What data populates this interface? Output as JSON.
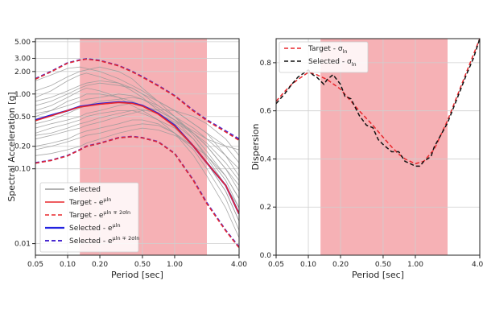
{
  "chart_data": [
    {
      "type": "line",
      "xlabel": "Period [sec]",
      "ylabel": "Spectral Acceleration [g]",
      "xscale": "log",
      "yscale": "log",
      "xlim": [
        0.05,
        4.0
      ],
      "ylim": [
        0.007,
        5.5
      ],
      "xticks": [
        0.05,
        0.1,
        0.2,
        0.5,
        1.0,
        4.0
      ],
      "xtick_labels": [
        "0.05",
        "0.10",
        "0.20",
        "0.50",
        "1.00",
        "4.00"
      ],
      "yticks": [
        0.01,
        0.1,
        0.2,
        0.5,
        1.0,
        2.0,
        3.0,
        5.0
      ],
      "ytick_labels": [
        "0.01",
        "0.10",
        "0.20",
        "0.50",
        "1.00",
        "2.00",
        "3.00",
        "5.00"
      ],
      "shaded_period_range": [
        0.13,
        2.0
      ],
      "shade_color": "#f4a3a8",
      "grid": true,
      "legend_position": "bottom-left",
      "legend": [
        {
          "label_main": "Selected",
          "label_sup": "",
          "style": "gray"
        },
        {
          "label_main": "Target - e",
          "label_sup": "μln",
          "style": "red-solid"
        },
        {
          "label_main": "Target - e",
          "label_sup": "μln ∓ 2σln",
          "style": "red-dashed"
        },
        {
          "label_main": "Selected - e",
          "label_sup": "μln",
          "style": "blue-solid"
        },
        {
          "label_main": "Selected - e",
          "label_sup": "μln ∓ 2σln",
          "style": "blue-dashed"
        }
      ],
      "x": [
        0.05,
        0.07,
        0.1,
        0.13,
        0.15,
        0.2,
        0.3,
        0.4,
        0.5,
        0.7,
        1.0,
        1.5,
        2.0,
        3.0,
        4.0
      ],
      "series": [
        {
          "style": "blue-solid",
          "values": [
            0.45,
            0.52,
            0.6,
            0.68,
            0.7,
            0.74,
            0.78,
            0.76,
            0.7,
            0.55,
            0.38,
            0.2,
            0.12,
            0.06,
            0.025
          ]
        },
        {
          "style": "red-solid",
          "values": [
            0.44,
            0.51,
            0.6,
            0.67,
            0.69,
            0.73,
            0.77,
            0.75,
            0.69,
            0.54,
            0.37,
            0.2,
            0.12,
            0.06,
            0.025
          ]
        },
        {
          "style": "blue-dashed",
          "values": [
            1.6,
            2.0,
            2.6,
            2.85,
            2.95,
            2.8,
            2.4,
            2.0,
            1.7,
            1.3,
            0.95,
            0.6,
            0.45,
            0.32,
            0.25
          ]
        },
        {
          "style": "red-dashed",
          "values": [
            1.58,
            1.98,
            2.58,
            2.83,
            2.93,
            2.78,
            2.38,
            1.98,
            1.68,
            1.28,
            0.94,
            0.59,
            0.44,
            0.31,
            0.24
          ]
        },
        {
          "style": "blue-dashed",
          "values": [
            0.12,
            0.13,
            0.15,
            0.18,
            0.2,
            0.22,
            0.26,
            0.27,
            0.26,
            0.23,
            0.16,
            0.07,
            0.035,
            0.015,
            0.009
          ]
        },
        {
          "style": "red-dashed",
          "values": [
            0.119,
            0.129,
            0.149,
            0.179,
            0.199,
            0.219,
            0.259,
            0.269,
            0.259,
            0.229,
            0.159,
            0.069,
            0.034,
            0.0148,
            0.0088
          ]
        },
        {
          "style": "gray",
          "values": [
            0.9,
            1.1,
            1.5,
            1.8,
            1.9,
            1.7,
            1.4,
            1.1,
            0.9,
            0.6,
            0.45,
            0.3,
            0.2,
            0.1,
            0.05
          ]
        },
        {
          "style": "gray",
          "values": [
            0.5,
            0.6,
            0.8,
            0.9,
            1.0,
            1.0,
            0.9,
            0.8,
            0.7,
            0.55,
            0.4,
            0.25,
            0.15,
            0.07,
            0.03
          ]
        },
        {
          "style": "gray",
          "values": [
            0.3,
            0.35,
            0.4,
            0.45,
            0.5,
            0.55,
            0.6,
            0.6,
            0.55,
            0.45,
            0.35,
            0.2,
            0.12,
            0.05,
            0.02
          ]
        },
        {
          "style": "gray",
          "values": [
            0.2,
            0.22,
            0.25,
            0.3,
            0.32,
            0.35,
            0.4,
            0.45,
            0.45,
            0.4,
            0.3,
            0.18,
            0.1,
            0.04,
            0.015
          ]
        },
        {
          "style": "gray",
          "values": [
            1.5,
            1.8,
            2.2,
            2.3,
            2.2,
            2.0,
            1.6,
            1.3,
            1.1,
            0.8,
            0.6,
            0.4,
            0.3,
            0.15,
            0.08
          ]
        },
        {
          "style": "gray",
          "values": [
            0.7,
            0.8,
            1.0,
            1.2,
            1.3,
            1.4,
            1.3,
            1.2,
            1.0,
            0.8,
            0.6,
            0.4,
            0.3,
            0.2,
            0.12
          ]
        },
        {
          "style": "gray",
          "values": [
            0.25,
            0.28,
            0.32,
            0.35,
            0.38,
            0.42,
            0.5,
            0.55,
            0.6,
            0.62,
            0.6,
            0.5,
            0.4,
            0.25,
            0.15
          ]
        },
        {
          "style": "gray",
          "values": [
            0.15,
            0.16,
            0.18,
            0.2,
            0.22,
            0.25,
            0.3,
            0.33,
            0.35,
            0.33,
            0.28,
            0.2,
            0.15,
            0.08,
            0.04
          ]
        },
        {
          "style": "gray",
          "values": [
            0.6,
            0.7,
            0.9,
            1.1,
            1.2,
            1.1,
            0.9,
            0.7,
            0.6,
            0.45,
            0.3,
            0.15,
            0.08,
            0.03,
            0.012
          ]
        },
        {
          "style": "gray",
          "values": [
            0.4,
            0.45,
            0.55,
            0.65,
            0.7,
            0.8,
            0.85,
            0.9,
            0.85,
            0.7,
            0.5,
            0.3,
            0.2,
            0.1,
            0.06
          ]
        },
        {
          "style": "gray",
          "values": [
            1.1,
            1.3,
            1.7,
            2.0,
            2.1,
            2.3,
            2.0,
            1.6,
            1.2,
            0.8,
            0.5,
            0.28,
            0.17,
            0.08,
            0.04
          ]
        },
        {
          "style": "gray",
          "values": [
            0.35,
            0.4,
            0.45,
            0.5,
            0.55,
            0.6,
            0.7,
            0.75,
            0.7,
            0.6,
            0.45,
            0.32,
            0.25,
            0.2,
            0.18
          ]
        },
        {
          "style": "gray",
          "values": [
            0.18,
            0.2,
            0.23,
            0.26,
            0.28,
            0.3,
            0.35,
            0.38,
            0.4,
            0.38,
            0.3,
            0.2,
            0.12,
            0.05,
            0.02
          ]
        },
        {
          "style": "gray",
          "values": [
            0.8,
            0.9,
            1.1,
            1.3,
            1.4,
            1.5,
            1.4,
            1.2,
            1.0,
            0.7,
            0.5,
            0.35,
            0.25,
            0.15,
            0.1
          ]
        },
        {
          "style": "gray",
          "values": [
            0.55,
            0.6,
            0.7,
            0.8,
            0.85,
            0.9,
            1.0,
            0.95,
            0.85,
            0.65,
            0.45,
            0.25,
            0.14,
            0.06,
            0.03
          ]
        },
        {
          "style": "gray",
          "values": [
            0.28,
            0.3,
            0.35,
            0.4,
            0.42,
            0.48,
            0.55,
            0.6,
            0.62,
            0.55,
            0.42,
            0.3,
            0.22,
            0.12,
            0.07
          ]
        }
      ]
    },
    {
      "type": "line",
      "xlabel": "Period [sec]",
      "ylabel": "Dispersion",
      "xscale": "log",
      "xlim": [
        0.05,
        4.0
      ],
      "ylim": [
        0.0,
        0.9
      ],
      "xticks": [
        0.05,
        0.1,
        0.2,
        0.5,
        1.0,
        4.0
      ],
      "xtick_labels": [
        "0.05",
        "0.10",
        "0.20",
        "0.50",
        "1.00",
        "4.00"
      ],
      "yticks": [
        0.0,
        0.2,
        0.4,
        0.6,
        0.8
      ],
      "ytick_labels": [
        "0.0",
        "0.2",
        "0.4",
        "0.6",
        "0.8"
      ],
      "shaded_period_range": [
        0.13,
        2.0
      ],
      "shade_color": "#f4a3a8",
      "grid": true,
      "legend_position": "top-left",
      "legend": [
        {
          "label_main": "Target - σ",
          "label_sup": "",
          "label_sub": "ln",
          "style": "red-dashed"
        },
        {
          "label_main": "Selected - σ",
          "label_sup": "",
          "label_sub": "ln",
          "style": "black-dashed"
        }
      ],
      "series": [
        {
          "style": "red-dashed",
          "x": [
            0.05,
            0.06,
            0.07,
            0.08,
            0.1,
            0.12,
            0.15,
            0.2,
            0.25,
            0.3,
            0.4,
            0.5,
            0.6,
            0.7,
            0.8,
            1.0,
            1.2,
            1.5,
            2.0,
            2.5,
            3.0,
            4.0
          ],
          "values": [
            0.64,
            0.68,
            0.71,
            0.73,
            0.76,
            0.75,
            0.73,
            0.69,
            0.64,
            0.6,
            0.54,
            0.49,
            0.45,
            0.42,
            0.4,
            0.38,
            0.39,
            0.44,
            0.56,
            0.67,
            0.76,
            0.9
          ]
        },
        {
          "style": "black-dashed",
          "x": [
            0.05,
            0.06,
            0.07,
            0.08,
            0.1,
            0.11,
            0.12,
            0.14,
            0.15,
            0.17,
            0.2,
            0.22,
            0.25,
            0.3,
            0.35,
            0.4,
            0.45,
            0.5,
            0.6,
            0.7,
            0.8,
            0.9,
            1.0,
            1.1,
            1.2,
            1.4,
            1.5,
            2.0,
            2.5,
            3.0,
            3.5,
            4.0
          ],
          "values": [
            0.63,
            0.67,
            0.71,
            0.74,
            0.77,
            0.75,
            0.74,
            0.71,
            0.73,
            0.75,
            0.71,
            0.66,
            0.65,
            0.58,
            0.54,
            0.53,
            0.48,
            0.46,
            0.43,
            0.43,
            0.39,
            0.38,
            0.37,
            0.37,
            0.39,
            0.41,
            0.45,
            0.55,
            0.66,
            0.75,
            0.82,
            0.9
          ]
        }
      ]
    }
  ]
}
